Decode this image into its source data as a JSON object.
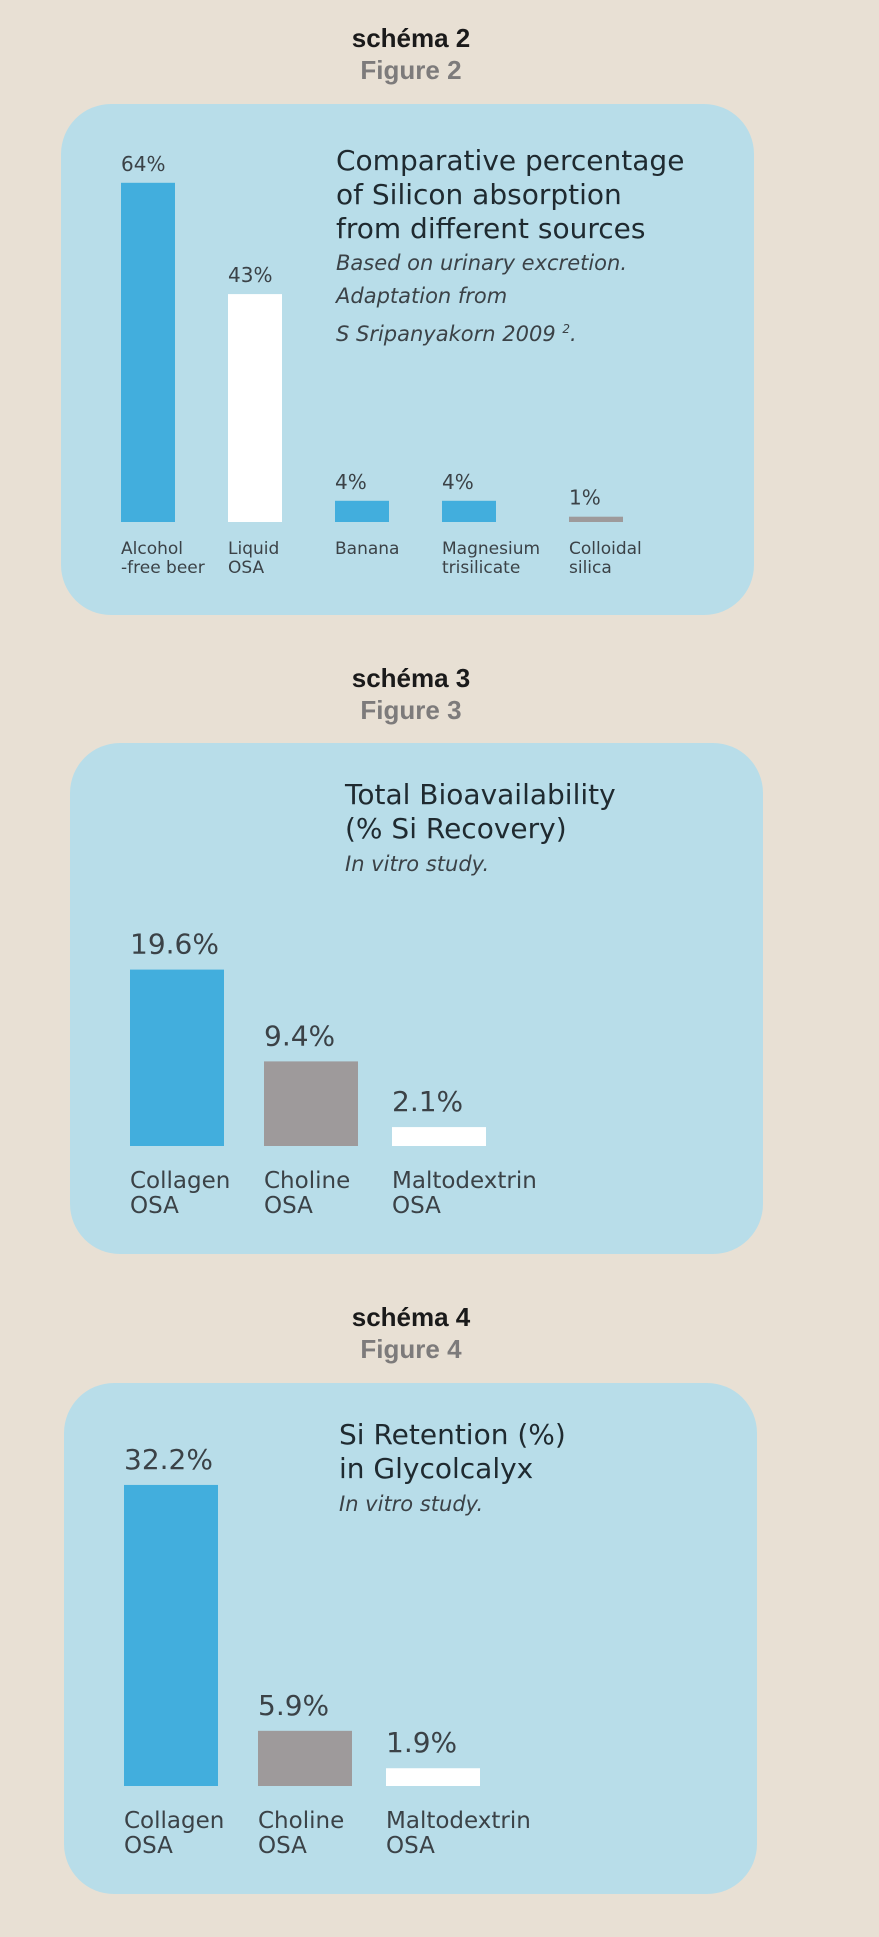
{
  "figures": [
    {
      "heading_fr": "schéma 2",
      "heading_en": "Figure 2",
      "title_lines": [
        "Comparative percentage",
        "of Silicon absorption",
        "from different sources"
      ],
      "subtitle_lines": [
        "Based on urinary excretion.",
        "Adaptation from",
        "S Sripanyakorn 2009"
      ],
      "subtitle_sup": "2",
      "subtitle_tail": "."
    },
    {
      "heading_fr": "schéma 3",
      "heading_en": "Figure 3",
      "title_lines": [
        "Total Bioavailability",
        "(% Si Recovery)"
      ],
      "subtitle_lines": [
        "In vitro study."
      ]
    },
    {
      "heading_fr": "schéma 4",
      "heading_en": "Figure 4",
      "title_lines": [
        "Si Retention (%)",
        "in Glycolcalyx"
      ],
      "subtitle_lines": [
        "In vitro study."
      ]
    }
  ],
  "colors": {
    "blue": "#42aedd",
    "white": "#ffffff",
    "grey": "#9e9a9b",
    "panel": "#b8dde9",
    "background": "#e8e0d4"
  },
  "chart_data": [
    {
      "type": "bar",
      "title": "Comparative percentage of Silicon absorption from different sources",
      "categories": [
        [
          "Alcohol",
          "-free beer"
        ],
        [
          "Liquid",
          "OSA"
        ],
        [
          "Banana"
        ],
        [
          "Magnesium",
          "trisilicate"
        ],
        [
          "Colloidal",
          "silica"
        ]
      ],
      "values": [
        64,
        43,
        4,
        4,
        1
      ],
      "value_labels": [
        "64%",
        "43%",
        "4%",
        "4%",
        "1%"
      ],
      "bar_colors": [
        "blue",
        "white",
        "blue",
        "blue",
        "grey"
      ],
      "unit": "%"
    },
    {
      "type": "bar",
      "title": "Total Bioavailability (% Si Recovery)",
      "categories": [
        [
          "Collagen",
          "OSA"
        ],
        [
          "Choline",
          "OSA"
        ],
        [
          "Maltodextrin",
          "OSA"
        ]
      ],
      "values": [
        19.6,
        9.4,
        2.1
      ],
      "value_labels": [
        "19.6%",
        "9.4%",
        "2.1%"
      ],
      "bar_colors": [
        "blue",
        "grey",
        "white"
      ],
      "unit": "%"
    },
    {
      "type": "bar",
      "title": "Si Retention (%) in Glycolcalyx",
      "categories": [
        [
          "Collagen",
          "OSA"
        ],
        [
          "Choline",
          "OSA"
        ],
        [
          "Maltodextrin",
          "OSA"
        ]
      ],
      "values": [
        32.2,
        5.9,
        1.9
      ],
      "value_labels": [
        "32.2%",
        "5.9%",
        "1.9%"
      ],
      "bar_colors": [
        "blue",
        "grey",
        "white"
      ],
      "unit": "%"
    }
  ]
}
